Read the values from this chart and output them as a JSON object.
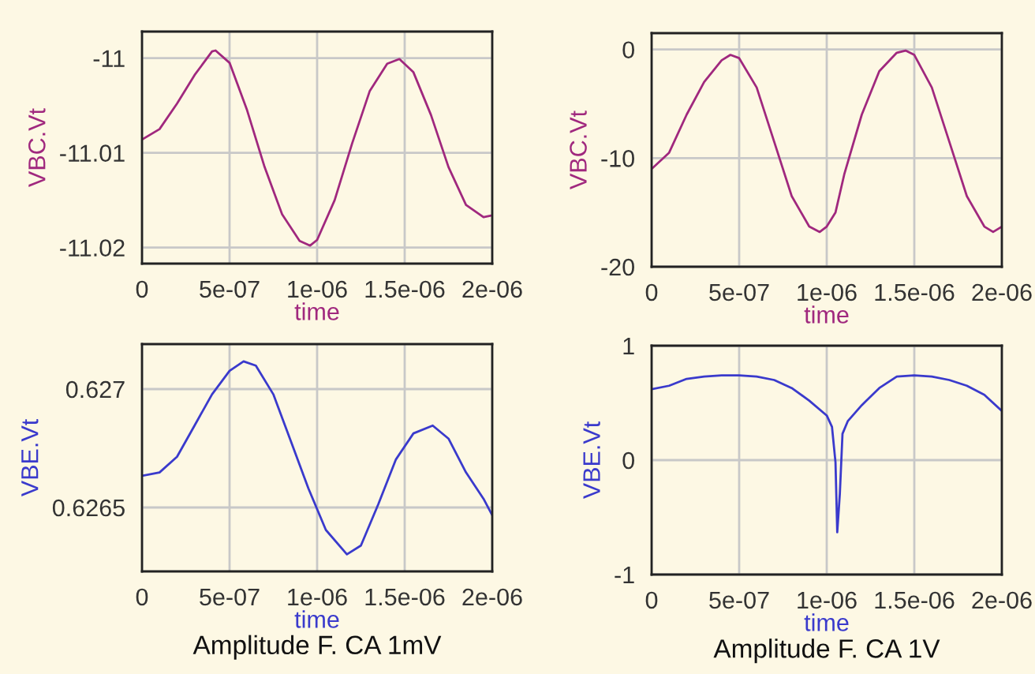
{
  "chart_data": [
    {
      "type": "line",
      "xlabel": "time",
      "ylabel": "VBC.Vt",
      "xlim": [
        0,
        2e-06
      ],
      "ylim": [
        -11.0217,
        -10.9972
      ],
      "xticks": [
        0,
        {
          "value": 5e-07,
          "label": "5e-07"
        },
        {
          "value": 1e-06,
          "label": "1e-06"
        },
        {
          "value": 1.5e-06,
          "label": "1.5e-06"
        },
        {
          "value": 2e-06,
          "label": "2e-06"
        }
      ],
      "yticks": [
        {
          "value": -11.02,
          "label": "-11.02"
        },
        {
          "value": -11.01,
          "label": "-11.01"
        },
        {
          "value": -11,
          "label": "-11"
        }
      ],
      "grid": true,
      "series": [
        {
          "color": "#a0287e",
          "x": [
            0,
            1e-07,
            2e-07,
            3e-07,
            4e-07,
            4.2e-07,
            5e-07,
            6e-07,
            7e-07,
            8e-07,
            9e-07,
            9.6e-07,
            1e-06,
            1.1e-06,
            1.2e-06,
            1.3e-06,
            1.4e-06,
            1.47e-06,
            1.55e-06,
            1.65e-06,
            1.75e-06,
            1.85e-06,
            1.95e-06,
            2e-06
          ],
          "values": [
            -11.0086,
            -11.0075,
            -11.0048,
            -11.0018,
            -10.9993,
            -10.9992,
            -11.0005,
            -11.0055,
            -11.0115,
            -11.0165,
            -11.0193,
            -11.0198,
            -11.0192,
            -11.015,
            -11.009,
            -11.0035,
            -11.0006,
            -11.0001,
            -11.0015,
            -11.006,
            -11.0115,
            -11.0155,
            -11.0168,
            -11.0166
          ]
        }
      ]
    },
    {
      "type": "line",
      "xlabel": "time",
      "ylabel": "VBC.Vt",
      "xlim": [
        0,
        2e-06
      ],
      "ylim": [
        -20,
        1.5
      ],
      "xticks": [
        0,
        {
          "value": 5e-07,
          "label": "5e-07"
        },
        {
          "value": 1e-06,
          "label": "1e-06"
        },
        {
          "value": 1.5e-06,
          "label": "1.5e-06"
        },
        {
          "value": 2e-06,
          "label": "2e-06"
        }
      ],
      "yticks": [
        -20,
        -10,
        0
      ],
      "grid": true,
      "series": [
        {
          "color": "#a0287e",
          "x": [
            0,
            1e-07,
            2e-07,
            3e-07,
            4e-07,
            4.5e-07,
            5e-07,
            6e-07,
            7e-07,
            8e-07,
            9e-07,
            9.6e-07,
            1e-06,
            1.05e-06,
            1.1e-06,
            1.2e-06,
            1.3e-06,
            1.4e-06,
            1.45e-06,
            1.5e-06,
            1.6e-06,
            1.7e-06,
            1.8e-06,
            1.9e-06,
            1.95e-06,
            2e-06
          ],
          "values": [
            -11,
            -9.5,
            -6,
            -3,
            -1,
            -0.5,
            -0.8,
            -3.5,
            -8.5,
            -13.5,
            -16.3,
            -16.8,
            -16.3,
            -15,
            -11.5,
            -6,
            -2,
            -0.3,
            -0.1,
            -0.5,
            -3.5,
            -8.5,
            -13.5,
            -16.3,
            -16.8,
            -16.3
          ]
        }
      ]
    },
    {
      "type": "line",
      "xlabel": "time",
      "ylabel": "VBE.Vt",
      "xlim": [
        0,
        2e-06
      ],
      "ylim": [
        0.62623,
        0.62719
      ],
      "xticks": [
        0,
        {
          "value": 5e-07,
          "label": "5e-07"
        },
        {
          "value": 1e-06,
          "label": "1e-06"
        },
        {
          "value": 1.5e-06,
          "label": "1.5e-06"
        },
        {
          "value": 2e-06,
          "label": "2e-06"
        }
      ],
      "yticks": [
        0.6265,
        0.627
      ],
      "grid": true,
      "annotations": [
        "Amplitude F. CA 1mV"
      ],
      "series": [
        {
          "color": "#3a3acc",
          "x": [
            0,
            1e-07,
            2e-07,
            3e-07,
            4e-07,
            5e-07,
            5.8e-07,
            6.5e-07,
            7.5e-07,
            8.5e-07,
            9.5e-07,
            1.05e-06,
            1.17e-06,
            1.25e-06,
            1.35e-06,
            1.45e-06,
            1.55e-06,
            1.66e-06,
            1.75e-06,
            1.85e-06,
            1.95e-06,
            2e-06
          ],
          "values": [
            0.626634,
            0.626648,
            0.626714,
            0.626846,
            0.626978,
            0.627077,
            0.627117,
            0.627099,
            0.626978,
            0.62678,
            0.626581,
            0.626405,
            0.626302,
            0.626339,
            0.626515,
            0.626703,
            0.626813,
            0.626846,
            0.626791,
            0.626648,
            0.626537,
            0.626467
          ]
        }
      ]
    },
    {
      "type": "line",
      "xlabel": "time",
      "ylabel": "VBE.Vt",
      "xlim": [
        0,
        2e-06
      ],
      "ylim": [
        -1,
        1
      ],
      "xticks": [
        0,
        {
          "value": 5e-07,
          "label": "5e-07"
        },
        {
          "value": 1e-06,
          "label": "1e-06"
        },
        {
          "value": 1.5e-06,
          "label": "1.5e-06"
        },
        {
          "value": 2e-06,
          "label": "2e-06"
        }
      ],
      "yticks": [
        -1,
        0,
        1
      ],
      "grid": true,
      "annotations": [
        "Amplitude F. CA 1V"
      ],
      "series": [
        {
          "color": "#3a3acc",
          "x": [
            0,
            1e-07,
            2e-07,
            3e-07,
            4e-07,
            5e-07,
            6e-07,
            7e-07,
            8e-07,
            9e-07,
            1e-06,
            1.03e-06,
            1.05e-06,
            1.06e-06,
            1.075e-06,
            1.09e-06,
            1.12e-06,
            1.2e-06,
            1.3e-06,
            1.4e-06,
            1.5e-06,
            1.6e-06,
            1.7e-06,
            1.8e-06,
            1.9e-06,
            2e-06
          ],
          "values": [
            0.62,
            0.65,
            0.71,
            0.73,
            0.74,
            0.74,
            0.73,
            0.7,
            0.63,
            0.52,
            0.39,
            0.29,
            -0.02,
            -0.63,
            -0.29,
            0.23,
            0.34,
            0.48,
            0.63,
            0.73,
            0.74,
            0.73,
            0.7,
            0.65,
            0.57,
            0.43
          ]
        }
      ]
    }
  ]
}
